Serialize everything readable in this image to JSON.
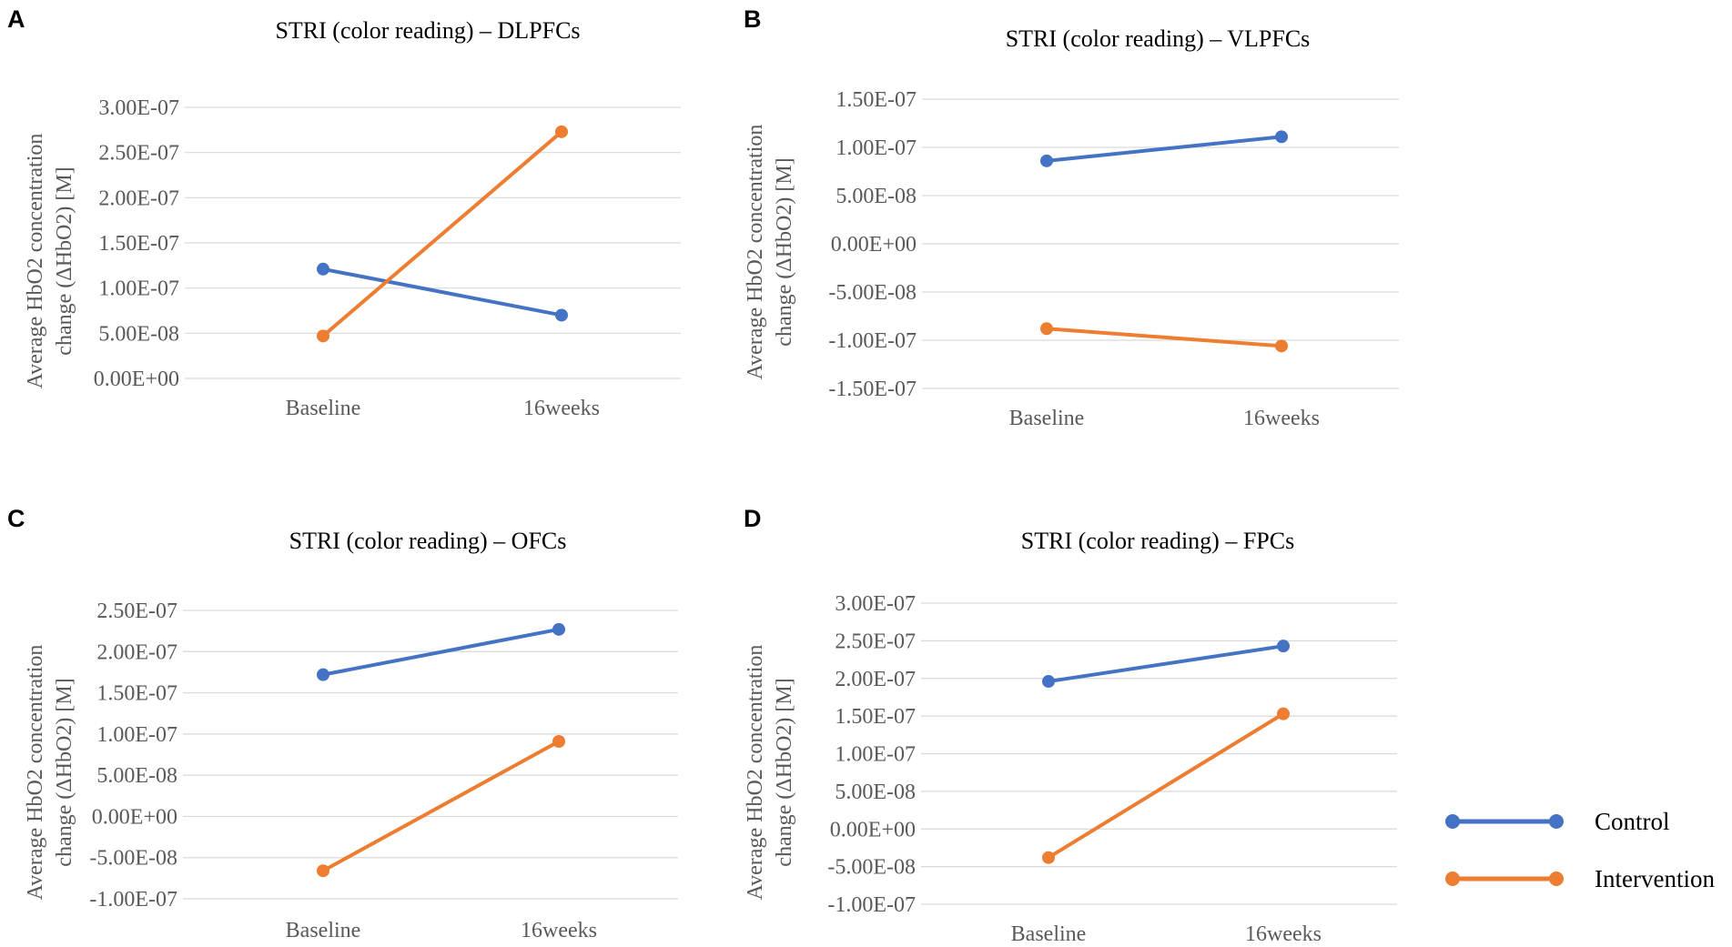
{
  "colors": {
    "control": "#4472c4",
    "intervention": "#ed7d31"
  },
  "legend": {
    "items": [
      "Control",
      "Intervention"
    ]
  },
  "chart_data": [
    {
      "type": "line",
      "panel": "A",
      "title": "STRI (color reading) – DLPFCs",
      "ylabel": [
        "Average HbO2 concentration",
        "change (ΔHbO2) [M]"
      ],
      "categories": [
        "Baseline",
        "16weeks"
      ],
      "ylim": [
        0,
        3e-07
      ],
      "yticks": [
        "0.00E+00",
        "5.00E-08",
        "1.00E-07",
        "1.50E-07",
        "2.00E-07",
        "2.50E-07",
        "3.00E-07"
      ],
      "series": [
        {
          "name": "Control",
          "values": [
            1.21e-07,
            7e-08
          ]
        },
        {
          "name": "Intervention",
          "values": [
            4.7e-08,
            2.73e-07
          ]
        }
      ]
    },
    {
      "type": "line",
      "panel": "B",
      "title": "STRI (color reading) – VLPFCs",
      "ylabel": [
        "Average HbO2 concentration",
        "change (ΔHbO2) [M]"
      ],
      "categories": [
        "Baseline",
        "16weeks"
      ],
      "ylim": [
        -1.5e-07,
        1.5e-07
      ],
      "yticks": [
        "-1.50E-07",
        "-1.00E-07",
        "-5.00E-08",
        "0.00E+00",
        "5.00E-08",
        "1.00E-07",
        "1.50E-07"
      ],
      "series": [
        {
          "name": "Control",
          "values": [
            8.6e-08,
            1.11e-07
          ]
        },
        {
          "name": "Intervention",
          "values": [
            -8.8e-08,
            -1.06e-07
          ]
        }
      ]
    },
    {
      "type": "line",
      "panel": "C",
      "title": "STRI (color reading) – OFCs",
      "ylabel": [
        "Average HbO2 concentration",
        "change (ΔHbO2) [M]"
      ],
      "categories": [
        "Baseline",
        "16weeks"
      ],
      "ylim": [
        -1e-07,
        2.5e-07
      ],
      "yticks": [
        "-1.00E-07",
        "-5.00E-08",
        "0.00E+00",
        "5.00E-08",
        "1.00E-07",
        "1.50E-07",
        "2.00E-07",
        "2.50E-07"
      ],
      "series": [
        {
          "name": "Control",
          "values": [
            1.72e-07,
            2.27e-07
          ]
        },
        {
          "name": "Intervention",
          "values": [
            -6.6e-08,
            9.1e-08
          ]
        }
      ]
    },
    {
      "type": "line",
      "panel": "D",
      "title": "STRI (color reading) – FPCs",
      "ylabel": [
        "Average HbO2 concentration",
        "change (ΔHbO2) [M]"
      ],
      "categories": [
        "Baseline",
        "16weeks"
      ],
      "ylim": [
        -1e-07,
        3e-07
      ],
      "yticks": [
        "-1.00E-07",
        "-5.00E-08",
        "0.00E+00",
        "5.00E-08",
        "1.00E-07",
        "1.50E-07",
        "2.00E-07",
        "2.50E-07",
        "3.00E-07"
      ],
      "series": [
        {
          "name": "Control",
          "values": [
            1.96e-07,
            2.43e-07
          ]
        },
        {
          "name": "Intervention",
          "values": [
            -3.8e-08,
            1.53e-07
          ]
        }
      ]
    }
  ]
}
